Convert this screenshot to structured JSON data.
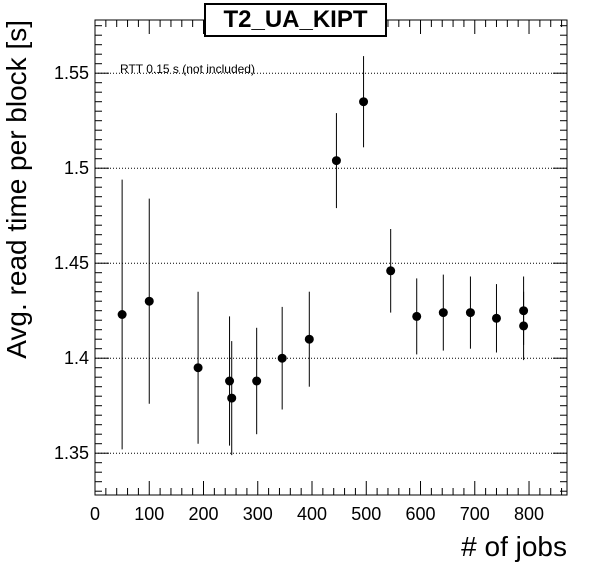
{
  "chart_data": {
    "type": "scatter",
    "title": "T2_UA_KIPT",
    "xlabel": "# of jobs",
    "ylabel": "Avg. read time per block [s]",
    "annotation": "RTT 0.15 s (not included)",
    "xlim": [
      0,
      870
    ],
    "ylim": [
      1.328,
      1.578
    ],
    "xticks": [
      0,
      100,
      200,
      300,
      400,
      500,
      600,
      700,
      800
    ],
    "yticks": [
      1.35,
      1.4,
      1.45,
      1.5,
      1.55
    ],
    "ytick_labels": [
      "1.35",
      "1.4",
      "1.45",
      "1.5",
      "1.55"
    ],
    "grid": "y-dotted",
    "series": [
      {
        "marker": "circle",
        "color": "#000000",
        "points": [
          {
            "x": 50,
            "y": 1.423,
            "err": 0.071
          },
          {
            "x": 100,
            "y": 1.43,
            "err": 0.054
          },
          {
            "x": 190,
            "y": 1.395,
            "err": 0.04
          },
          {
            "x": 248,
            "y": 1.388,
            "err": 0.034
          },
          {
            "x": 252,
            "y": 1.379,
            "err": 0.03
          },
          {
            "x": 298,
            "y": 1.388,
            "err": 0.028
          },
          {
            "x": 345,
            "y": 1.4,
            "err": 0.027
          },
          {
            "x": 395,
            "y": 1.41,
            "err": 0.025
          },
          {
            "x": 445,
            "y": 1.504,
            "err": 0.025
          },
          {
            "x": 495,
            "y": 1.535,
            "err": 0.024
          },
          {
            "x": 545,
            "y": 1.446,
            "err": 0.022
          },
          {
            "x": 593,
            "y": 1.422,
            "err": 0.02
          },
          {
            "x": 642,
            "y": 1.424,
            "err": 0.02
          },
          {
            "x": 692,
            "y": 1.424,
            "err": 0.019
          },
          {
            "x": 740,
            "y": 1.421,
            "err": 0.018
          },
          {
            "x": 790,
            "y": 1.425,
            "err": 0.018
          },
          {
            "x": 790,
            "y": 1.417,
            "err": 0.018
          }
        ]
      }
    ]
  }
}
